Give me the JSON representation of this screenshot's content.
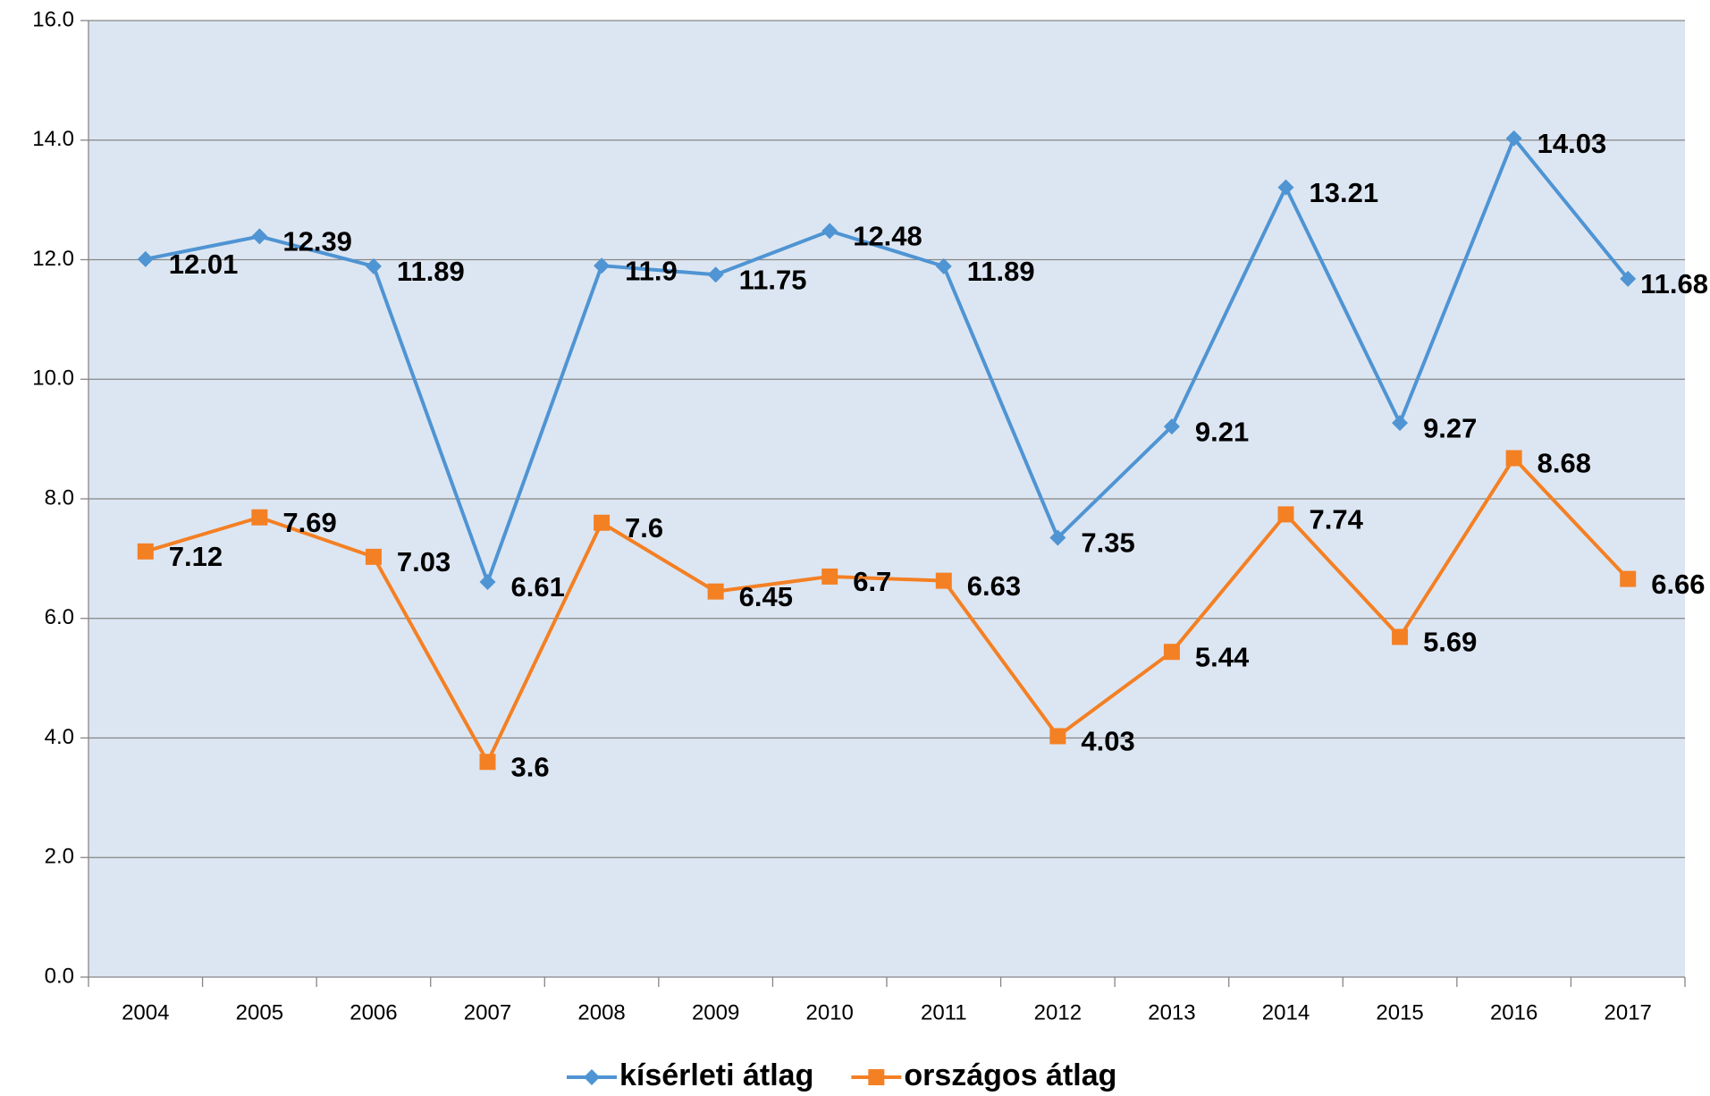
{
  "chart_data": {
    "type": "line",
    "categories": [
      "2004",
      "2005",
      "2006",
      "2007",
      "2008",
      "2009",
      "2010",
      "2011",
      "2012",
      "2013",
      "2014",
      "2015",
      "2016",
      "2017"
    ],
    "series": [
      {
        "name": "kísérleti átlag",
        "color": "#4f94d3",
        "marker": "diamond",
        "values": [
          12.01,
          12.39,
          11.89,
          6.61,
          11.9,
          11.75,
          12.48,
          11.89,
          7.35,
          9.21,
          13.21,
          9.27,
          14.03,
          11.68
        ]
      },
      {
        "name": "országos átlag",
        "color": "#f48024",
        "marker": "square",
        "values": [
          7.12,
          7.69,
          7.03,
          3.6,
          7.6,
          6.45,
          6.7,
          6.63,
          4.03,
          5.44,
          7.74,
          5.69,
          8.68,
          6.66
        ]
      }
    ],
    "ylim": [
      0,
      16
    ],
    "yticks": [
      {
        "value": 0,
        "label": "0.0"
      },
      {
        "value": 2,
        "label": "2.0"
      },
      {
        "value": 4,
        "label": "4.0"
      },
      {
        "value": 6,
        "label": "6.0"
      },
      {
        "value": 8,
        "label": "8.0"
      },
      {
        "value": 10,
        "label": "10.0"
      },
      {
        "value": 12,
        "label": "12.0"
      },
      {
        "value": 14,
        "label": "14.0"
      },
      {
        "value": 16,
        "label": "16.0"
      }
    ],
    "grid": true,
    "legend": "bottom",
    "plot_background": "#dce6f2"
  }
}
